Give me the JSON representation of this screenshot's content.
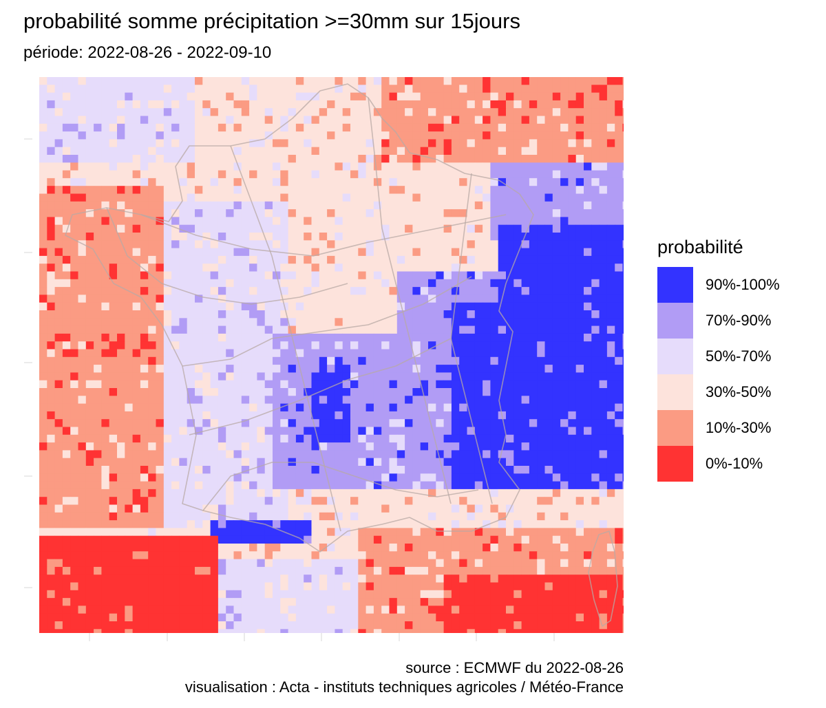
{
  "title": "probabilité somme précipitation >=30mm sur 15jours",
  "subtitle": "période: 2022-08-26 - 2022-09-10",
  "legend": {
    "title": "probabilité",
    "items": [
      {
        "label": "90%-100%",
        "color": "#3333ff"
      },
      {
        "label": "70%-90%",
        "color": "#b19cf5"
      },
      {
        "label": "50%-70%",
        "color": "#e6dcfb"
      },
      {
        "label": "30%-50%",
        "color": "#fde3dc"
      },
      {
        "label": "10%-30%",
        "color": "#fb9b83"
      },
      {
        "label": "0%-10%",
        "color": "#ff3333"
      }
    ]
  },
  "caption": {
    "source": "source : ECMWF du 2022-08-26",
    "visualisation": "visualisation : Acta - instituts techniques agricoles / Météo-France"
  },
  "map": {
    "region": "France",
    "boundary_color": "#b8aaa6",
    "dominant_categories": {
      "northwest_atlantic": "10%-30%",
      "north": "30%-50%",
      "west": "50%-70%",
      "massif_central": "70%-90%",
      "alps_east": "90%-100%",
      "mediterranean": "10%-30%",
      "spain_sardinia_south": "0%-10%"
    }
  }
}
